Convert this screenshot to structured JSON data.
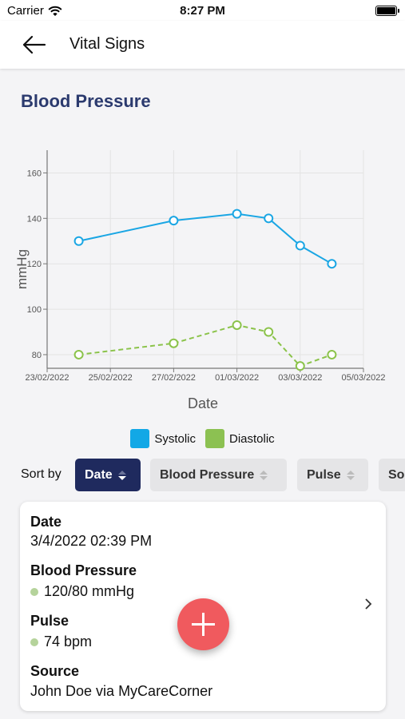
{
  "status_bar": {
    "carrier": "Carrier",
    "time": "8:27 PM"
  },
  "nav": {
    "title": "Vital Signs",
    "back_icon": "back-arrow-icon"
  },
  "section": {
    "title": "Blood Pressure"
  },
  "chart_data": {
    "type": "line",
    "xlabel": "Date",
    "ylabel": "mmHg",
    "x_ticks": [
      "23/02/2022",
      "25/02/2022",
      "27/02/2022",
      "01/03/2022",
      "03/03/2022",
      "05/03/2022"
    ],
    "y_ticks": [
      80,
      100,
      120,
      140,
      160
    ],
    "xlim": [
      "2022-02-23",
      "2022-03-05"
    ],
    "ylim": [
      74,
      170
    ],
    "grid": true,
    "legend": "bottom",
    "series": [
      {
        "name": "Systolic",
        "color": "#1aa6e4",
        "style": "solid",
        "x": [
          "2022-02-24",
          "2022-02-27",
          "2022-03-01",
          "2022-03-02",
          "2022-03-03",
          "2022-03-04"
        ],
        "y": [
          130,
          139,
          142,
          140,
          128,
          120
        ]
      },
      {
        "name": "Diastolic",
        "color": "#8bc34a",
        "style": "dashed",
        "x": [
          "2022-02-24",
          "2022-02-27",
          "2022-03-01",
          "2022-03-02",
          "2022-03-03",
          "2022-03-04"
        ],
        "y": [
          80,
          85,
          93,
          90,
          75,
          80
        ]
      }
    ]
  },
  "legend": {
    "systolic": "Systolic",
    "diastolic": "Diastolic",
    "systolic_color": "#12a8e6",
    "diastolic_color": "#8cc152"
  },
  "sort": {
    "label": "Sort by",
    "options": [
      {
        "label": "Date",
        "active": true
      },
      {
        "label": "Blood Pressure",
        "active": false
      },
      {
        "label": "Pulse",
        "active": false
      },
      {
        "label": "So",
        "active": false
      }
    ]
  },
  "record": {
    "date_label": "Date",
    "date_value": "3/4/2022 02:39 PM",
    "bp_label": "Blood Pressure",
    "bp_value": "120/80 mmHg",
    "pulse_label": "Pulse",
    "pulse_value": "74 bpm",
    "source_label": "Source",
    "source_value": "John Doe via MyCareCorner"
  },
  "fab": {
    "icon": "plus-icon"
  }
}
